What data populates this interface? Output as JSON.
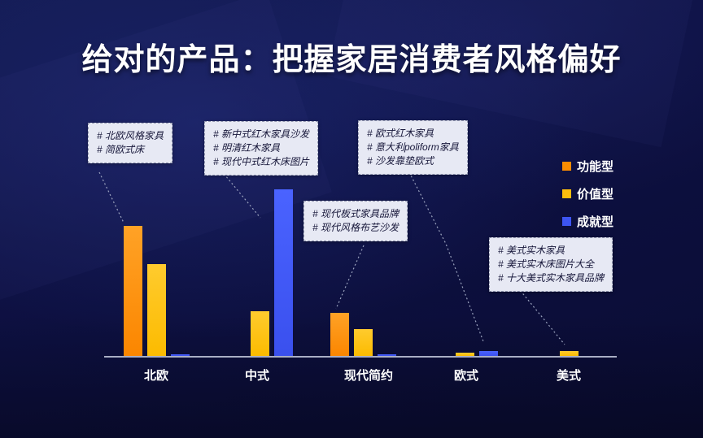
{
  "title": "给对的产品：把握家居消费者风格偏好",
  "callouts": [
    {
      "lines": [
        "# 北欧风格家具",
        "# 简欧式床"
      ]
    },
    {
      "lines": [
        "# 新中式红木家具沙发",
        "# 明清红木家具",
        "# 现代中式红木床图片"
      ]
    },
    {
      "lines": [
        "# 欧式红木家具",
        "# 意大利poliform家具",
        "# 沙发靠垫欧式"
      ]
    },
    {
      "lines": [
        "# 现代板式家具品牌",
        "# 现代风格布艺沙发"
      ]
    },
    {
      "lines": [
        "# 美式实木家具",
        "# 美式实木床图片大全",
        "# 十大美式实木家具品牌"
      ]
    }
  ],
  "chart_data": {
    "type": "bar",
    "title": "给对的产品：把握家居消费者风格偏好",
    "categories": [
      "北欧",
      "中式",
      "现代简约",
      "欧式",
      "美式"
    ],
    "series": [
      {
        "name": "功能型",
        "color": "#fb8c00",
        "values": [
          78,
          0,
          26,
          0,
          0
        ]
      },
      {
        "name": "价值型",
        "color": "#fcbd0e",
        "values": [
          55,
          27,
          16,
          2,
          3
        ]
      },
      {
        "name": "成就型",
        "color": "#3d55f2",
        "values": [
          1,
          100,
          1,
          3,
          0
        ]
      }
    ],
    "xlabel": "",
    "ylabel": "",
    "ylim": [
      0,
      100
    ],
    "grid": false,
    "legend_position": "right"
  }
}
